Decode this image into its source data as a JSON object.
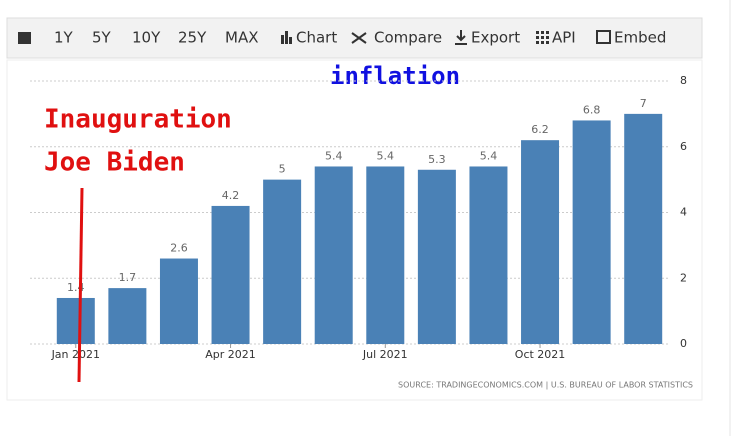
{
  "toolbar": [
    "1Y",
    "5Y",
    "10Y",
    "25Y",
    "MAX",
    "Chart",
    "Compare",
    "Export",
    "API",
    "Embed"
  ],
  "chart_data": {
    "type": "bar",
    "title": "inflation",
    "annotations": [
      "Inauguration",
      "Joe Biden"
    ],
    "source": "SOURCE: TRADINGECONOMICS.COM | U.S. BUREAU OF LABOR STATISTICS",
    "categories": [
      "Jan 2021",
      null,
      null,
      "Apr 2021",
      null,
      null,
      "Jul 2021",
      null,
      null,
      "Oct 2021",
      null,
      null
    ],
    "values": [
      1.4,
      1.7,
      2.6,
      4.2,
      5,
      5.4,
      5.4,
      5.3,
      5.4,
      6.2,
      6.8,
      7
    ],
    "color": "#4a81b6",
    "ylim": [
      0,
      8
    ],
    "yticks": [
      0,
      2,
      4,
      6,
      8
    ],
    "grid": true
  }
}
